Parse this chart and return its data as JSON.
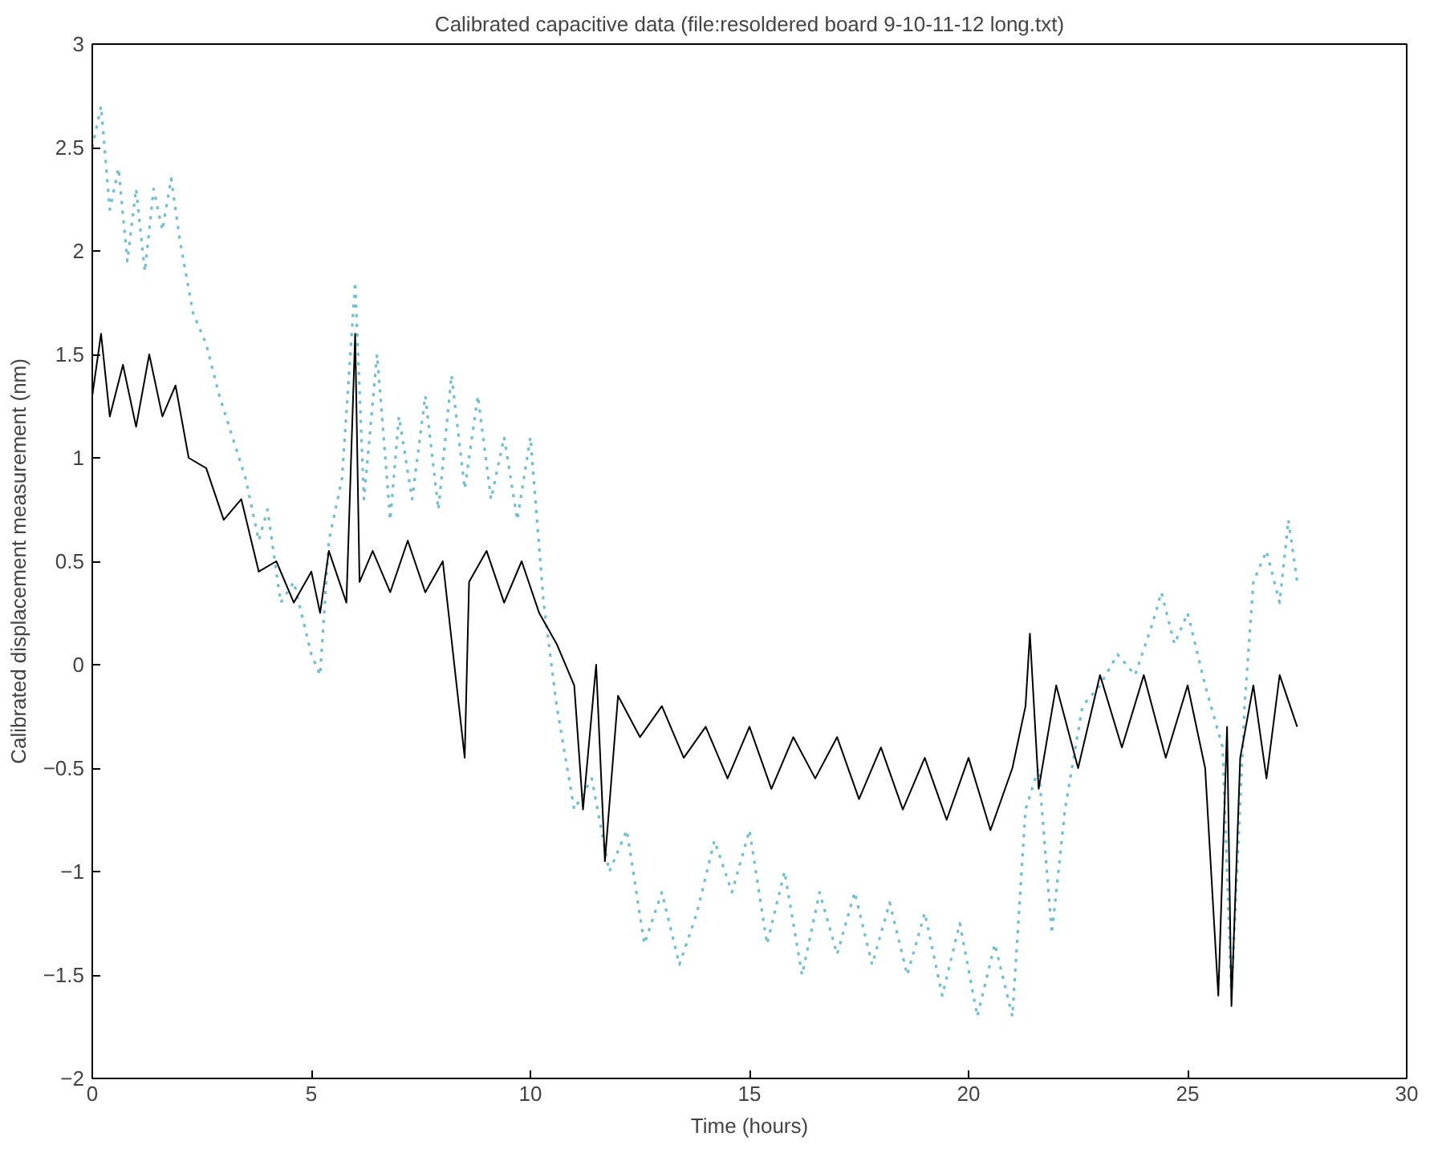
{
  "chart_data": {
    "type": "line",
    "title": "Calibrated capacitive data (file:resoldered board 9-10-11-12 long.txt)",
    "xlabel": "Time (hours)",
    "ylabel": "Calibrated displacement measurement (nm)",
    "xlim": [
      0,
      30
    ],
    "xticks": [
      0,
      5,
      10,
      15,
      20,
      25,
      30
    ],
    "ylim": [
      -2,
      3
    ],
    "yticks": [
      -2,
      -1.5,
      -1,
      -0.5,
      0,
      0.5,
      1,
      1.5,
      2,
      2.5,
      3
    ],
    "grid": false,
    "marker": "none",
    "series": [
      {
        "color": "#6cc0cf",
        "line_style": "dotted",
        "x": [
          0,
          0.2,
          0.4,
          0.6,
          0.8,
          1.0,
          1.2,
          1.4,
          1.6,
          1.8,
          2.0,
          2.3,
          2.6,
          2.9,
          3.2,
          3.5,
          3.8,
          4.0,
          4.3,
          4.6,
          5.0,
          5.2,
          5.4,
          5.7,
          6.0,
          6.2,
          6.5,
          6.8,
          7.0,
          7.3,
          7.6,
          7.9,
          8.2,
          8.5,
          8.8,
          9.1,
          9.4,
          9.7,
          10.0,
          10.3,
          10.6,
          11.0,
          11.4,
          11.8,
          12.2,
          12.6,
          13.0,
          13.4,
          13.8,
          14.2,
          14.6,
          15.0,
          15.4,
          15.8,
          16.2,
          16.6,
          17.0,
          17.4,
          17.8,
          18.2,
          18.6,
          19.0,
          19.4,
          19.8,
          20.2,
          20.6,
          21.0,
          21.3,
          21.6,
          21.9,
          22.2,
          22.6,
          23.0,
          23.4,
          23.8,
          24.2,
          24.4,
          24.7,
          25.0,
          25.4,
          25.8,
          26.0,
          26.3,
          26.5,
          26.8,
          27.1,
          27.3,
          27.5
        ],
        "values": [
          2.5,
          2.7,
          2.2,
          2.4,
          1.95,
          2.3,
          1.9,
          2.3,
          2.1,
          2.35,
          2.05,
          1.7,
          1.55,
          1.3,
          1.1,
          0.9,
          0.6,
          0.75,
          0.3,
          0.4,
          0.05,
          -0.05,
          0.6,
          0.9,
          1.85,
          0.8,
          1.5,
          0.7,
          1.2,
          0.8,
          1.3,
          0.75,
          1.4,
          0.85,
          1.3,
          0.8,
          1.1,
          0.7,
          1.1,
          0.3,
          -0.2,
          -0.7,
          -0.55,
          -1.0,
          -0.8,
          -1.35,
          -1.1,
          -1.45,
          -1.2,
          -0.85,
          -1.1,
          -0.8,
          -1.35,
          -1.0,
          -1.5,
          -1.1,
          -1.4,
          -1.1,
          -1.45,
          -1.15,
          -1.5,
          -1.2,
          -1.6,
          -1.25,
          -1.7,
          -1.35,
          -1.7,
          -0.7,
          -0.5,
          -1.3,
          -0.7,
          -0.2,
          -0.1,
          0.05,
          -0.05,
          0.2,
          0.35,
          0.1,
          0.25,
          -0.1,
          -0.4,
          -1.6,
          -0.2,
          0.4,
          0.55,
          0.3,
          0.7,
          0.4
        ]
      },
      {
        "color": "#000000",
        "line_style": "solid",
        "x": [
          0,
          0.2,
          0.4,
          0.7,
          1.0,
          1.3,
          1.6,
          1.9,
          2.2,
          2.6,
          3.0,
          3.4,
          3.8,
          4.2,
          4.6,
          5.0,
          5.2,
          5.4,
          5.8,
          6.0,
          6.1,
          6.4,
          6.8,
          7.2,
          7.6,
          8.0,
          8.5,
          8.6,
          9.0,
          9.4,
          9.8,
          10.2,
          10.6,
          11.0,
          11.2,
          11.5,
          11.7,
          12.0,
          12.5,
          13.0,
          13.5,
          14.0,
          14.5,
          15.0,
          15.5,
          16.0,
          16.5,
          17.0,
          17.5,
          18.0,
          18.5,
          19.0,
          19.5,
          20.0,
          20.5,
          21.0,
          21.3,
          21.4,
          21.6,
          22.0,
          22.5,
          23.0,
          23.5,
          24.0,
          24.5,
          25.0,
          25.4,
          25.7,
          25.9,
          26.0,
          26.2,
          26.5,
          26.8,
          27.1,
          27.5
        ],
        "values": [
          1.3,
          1.6,
          1.2,
          1.45,
          1.15,
          1.5,
          1.2,
          1.35,
          1.0,
          0.95,
          0.7,
          0.8,
          0.45,
          0.5,
          0.3,
          0.45,
          0.25,
          0.55,
          0.3,
          1.6,
          0.4,
          0.55,
          0.35,
          0.6,
          0.35,
          0.5,
          -0.45,
          0.4,
          0.55,
          0.3,
          0.5,
          0.25,
          0.1,
          -0.1,
          -0.7,
          0.0,
          -0.95,
          -0.15,
          -0.35,
          -0.2,
          -0.45,
          -0.3,
          -0.55,
          -0.3,
          -0.6,
          -0.35,
          -0.55,
          -0.35,
          -0.65,
          -0.4,
          -0.7,
          -0.45,
          -0.75,
          -0.45,
          -0.8,
          -0.5,
          -0.2,
          0.15,
          -0.6,
          -0.1,
          -0.5,
          -0.05,
          -0.4,
          -0.05,
          -0.45,
          -0.1,
          -0.5,
          -1.6,
          -0.3,
          -1.65,
          -0.45,
          -0.1,
          -0.55,
          -0.05,
          -0.3
        ]
      }
    ]
  }
}
